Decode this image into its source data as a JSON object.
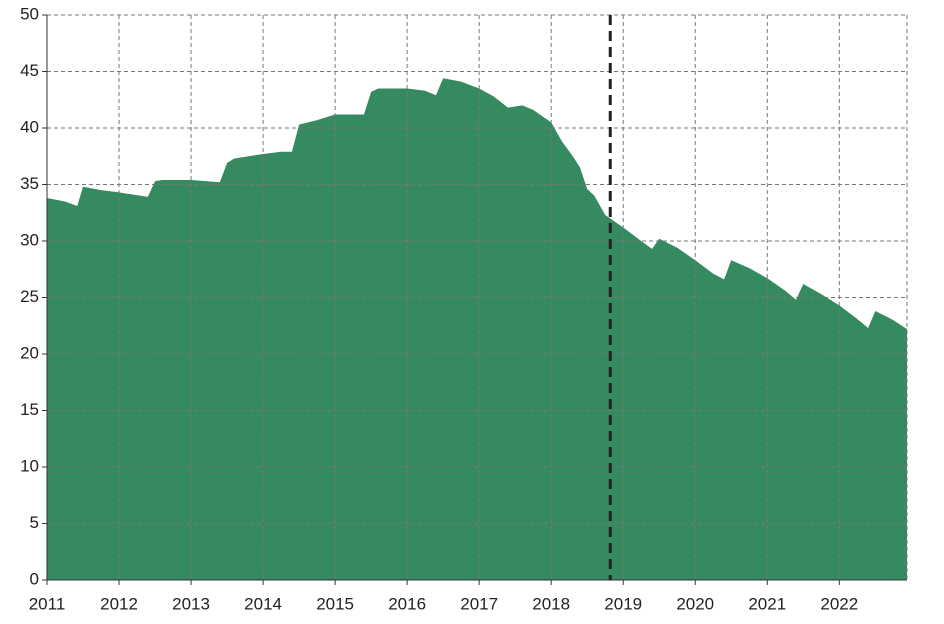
{
  "chart_data": {
    "type": "area",
    "x": [
      2011,
      2011.25,
      2011.42,
      2011.5,
      2011.75,
      2012,
      2012.4,
      2012.5,
      2012.6,
      2013,
      2013.4,
      2013.5,
      2013.6,
      2014,
      2014.25,
      2014.4,
      2014.5,
      2014.75,
      2015,
      2015.4,
      2015.5,
      2015.6,
      2015.75,
      2016,
      2016.25,
      2016.4,
      2016.5,
      2016.75,
      2017,
      2017.2,
      2017.4,
      2017.6,
      2017.75,
      2018,
      2018.15,
      2018.3,
      2018.4,
      2018.5,
      2018.6,
      2018.75,
      2019,
      2019.25,
      2019.4,
      2019.5,
      2019.75,
      2020,
      2020.25,
      2020.4,
      2020.5,
      2020.75,
      2021,
      2021.25,
      2021.4,
      2021.5,
      2021.75,
      2022,
      2022.25,
      2022.4,
      2022.5,
      2022.75,
      2022.94
    ],
    "values": [
      33.8,
      33.5,
      33.1,
      34.8,
      34.5,
      34.3,
      33.9,
      35.3,
      35.4,
      35.4,
      35.2,
      36.9,
      37.3,
      37.7,
      37.9,
      37.9,
      40.3,
      40.7,
      41.2,
      41.2,
      43.2,
      43.5,
      43.5,
      43.5,
      43.3,
      42.9,
      44.4,
      44.1,
      43.5,
      42.8,
      41.8,
      42.0,
      41.6,
      40.5,
      38.8,
      37.5,
      36.5,
      34.6,
      34.0,
      32.3,
      31.2,
      30.0,
      29.3,
      30.2,
      29.4,
      28.3,
      27.1,
      26.6,
      28.3,
      27.6,
      26.7,
      25.6,
      24.8,
      26.2,
      25.3,
      24.3,
      23.1,
      22.3,
      23.8,
      23.0,
      22.2
    ],
    "color": "#358a5f",
    "xlim": [
      2011,
      2022.94
    ],
    "xticks": [
      2011,
      2012,
      2013,
      2014,
      2015,
      2016,
      2017,
      2018,
      2019,
      2020,
      2021,
      2022
    ],
    "ylim": [
      0,
      50
    ],
    "yticks": [
      0,
      5,
      10,
      15,
      20,
      25,
      30,
      35,
      40,
      45,
      50
    ],
    "grid": true,
    "vline": 2018.82,
    "vline_color": "#222222"
  }
}
